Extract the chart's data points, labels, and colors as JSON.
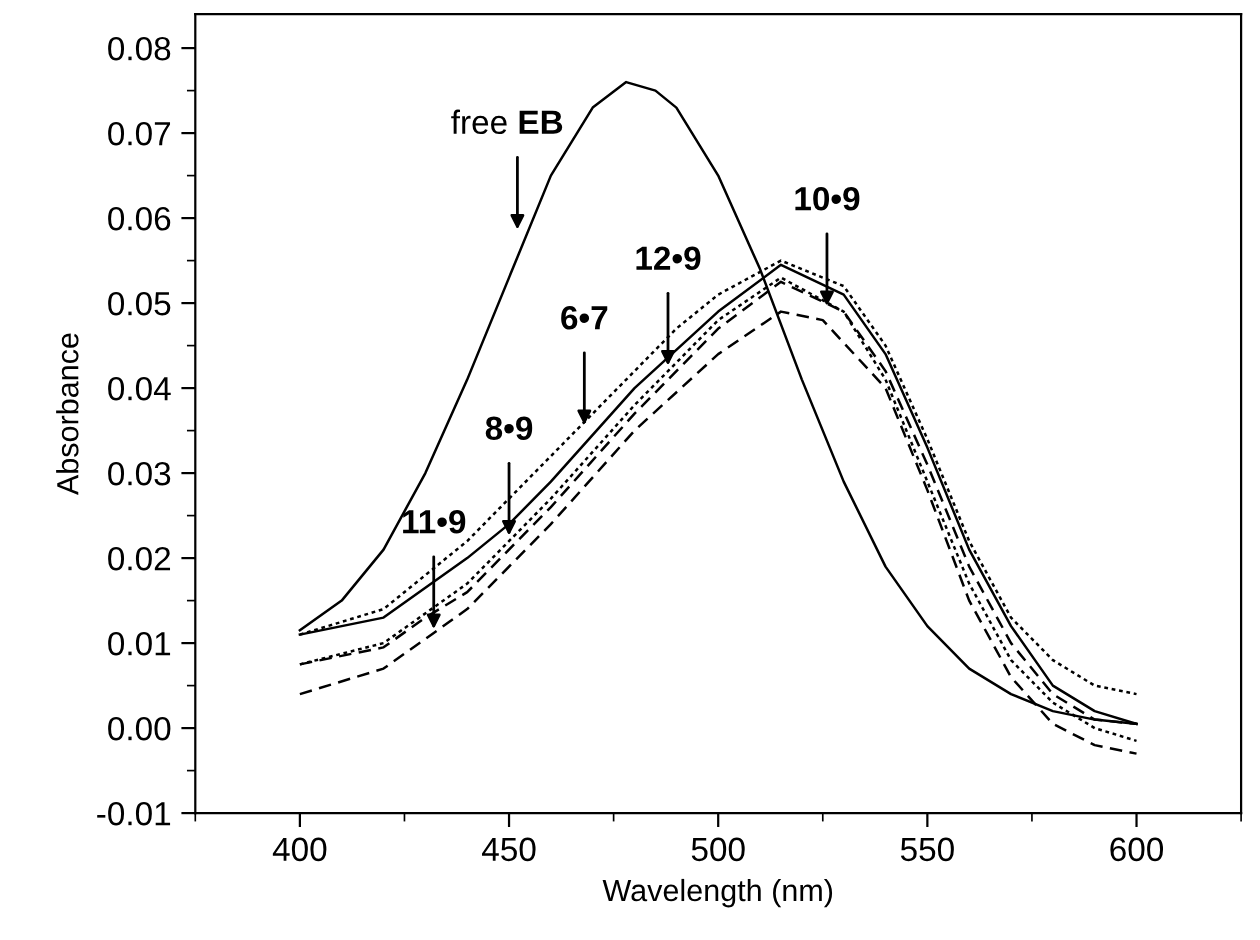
{
  "chart_data": {
    "type": "line",
    "xlabel": "Wavelength (nm)",
    "ylabel": "Absorbance",
    "xlim": [
      375,
      625
    ],
    "xticks": [
      400,
      450,
      500,
      550,
      600
    ],
    "ylim": [
      -0.01,
      0.084
    ],
    "yticks": [
      {
        "value": -0.01,
        "label": "-0.01"
      },
      {
        "value": 0,
        "label": "0.00"
      },
      {
        "value": 0.01,
        "label": "0.01"
      },
      {
        "value": 0.02,
        "label": "0.02"
      },
      {
        "value": 0.03,
        "label": "0.03"
      },
      {
        "value": 0.04,
        "label": "0.04"
      },
      {
        "value": 0.05,
        "label": "0.05"
      },
      {
        "value": 0.06,
        "label": "0.06"
      },
      {
        "value": 0.07,
        "label": "0.07"
      },
      {
        "value": 0.08,
        "label": "0.08"
      }
    ],
    "grid": false,
    "legend": false,
    "marker": "none",
    "series": [
      {
        "color": "#000000",
        "line_style": "solid",
        "x": [
          400,
          410,
          420,
          430,
          440,
          450,
          460,
          470,
          478,
          485,
          490,
          500,
          510,
          520,
          530,
          540,
          550,
          560,
          570,
          580,
          590,
          600
        ],
        "values": [
          0.0115,
          0.015,
          0.021,
          0.03,
          0.041,
          0.053,
          0.065,
          0.073,
          0.076,
          0.075,
          0.073,
          0.065,
          0.054,
          0.041,
          0.029,
          0.019,
          0.012,
          0.007,
          0.004,
          0.002,
          0.001,
          0.0005
        ]
      },
      {
        "color": "#000000",
        "line_style": "dotted",
        "x": [
          400,
          420,
          440,
          460,
          470,
          480,
          490,
          500,
          515,
          530,
          540,
          550,
          560,
          570,
          580,
          590,
          600
        ],
        "values": [
          0.011,
          0.014,
          0.022,
          0.032,
          0.037,
          0.042,
          0.047,
          0.051,
          0.055,
          0.052,
          0.045,
          0.034,
          0.022,
          0.013,
          0.008,
          0.005,
          0.004
        ]
      },
      {
        "color": "#000000",
        "line_style": "solid",
        "x": [
          400,
          420,
          440,
          450,
          460,
          480,
          500,
          515,
          530,
          540,
          550,
          560,
          570,
          580,
          590,
          600
        ],
        "values": [
          0.011,
          0.013,
          0.02,
          0.024,
          0.029,
          0.04,
          0.049,
          0.0545,
          0.051,
          0.044,
          0.033,
          0.021,
          0.012,
          0.005,
          0.002,
          0.0005
        ]
      },
      {
        "color": "#000000",
        "line_style": "dotted",
        "x": [
          400,
          420,
          440,
          460,
          480,
          490,
          500,
          515,
          530,
          540,
          550,
          560,
          570,
          580,
          590,
          600
        ],
        "values": [
          0.0075,
          0.01,
          0.017,
          0.027,
          0.038,
          0.043,
          0.048,
          0.053,
          0.049,
          0.041,
          0.029,
          0.017,
          0.008,
          0.003,
          0.0,
          -0.0015
        ]
      },
      {
        "color": "#000000",
        "line_style": "dashed",
        "x": [
          400,
          420,
          430,
          440,
          460,
          480,
          500,
          515,
          530,
          540,
          550,
          560,
          570,
          580,
          590,
          600
        ],
        "values": [
          0.0075,
          0.0095,
          0.013,
          0.016,
          0.026,
          0.037,
          0.047,
          0.0525,
          0.049,
          0.042,
          0.031,
          0.019,
          0.01,
          0.004,
          0.001,
          0.0005
        ]
      },
      {
        "color": "#000000",
        "line_style": "dashed",
        "x": [
          400,
          420,
          440,
          460,
          480,
          500,
          515,
          525,
          540,
          550,
          560,
          570,
          580,
          590,
          600
        ],
        "values": [
          0.004,
          0.007,
          0.014,
          0.024,
          0.035,
          0.044,
          0.049,
          0.048,
          0.04,
          0.028,
          0.015,
          0.006,
          0.0005,
          -0.002,
          -0.003
        ]
      }
    ],
    "annotations": [
      {
        "text": "free EB",
        "x": 452,
        "y": 0.058
      },
      {
        "text": "12•9",
        "x": 488,
        "y": 0.042
      },
      {
        "text": "10•9",
        "x": 526,
        "y": 0.049
      },
      {
        "text": "6•7",
        "x": 468,
        "y": 0.035
      },
      {
        "text": "8•9",
        "x": 450,
        "y": 0.022
      },
      {
        "text": "11•9",
        "x": 432,
        "y": 0.011
      }
    ]
  }
}
